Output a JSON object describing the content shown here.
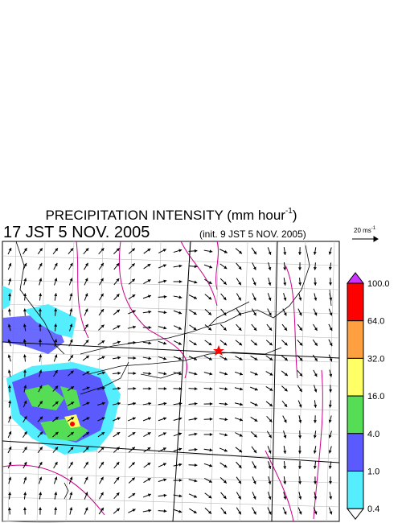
{
  "header": {
    "title": {
      "text": "PRECIPITATION INTENSITY (mm hour",
      "superscript": "-1",
      "close": ")"
    },
    "valid_time": "17 JST 5 NOV. 2005",
    "init_time": "(init. 9 JST 5 NOV. 2005)",
    "reference_vector": {
      "text": "20 ms",
      "superscript": "-1"
    }
  },
  "legend": {
    "labels": [
      "100.0",
      "64.0",
      "32.0",
      "16.0",
      "4.0",
      "1.0",
      "0.4"
    ],
    "colors": [
      "#ff0000",
      "#ffa040",
      "#ffff66",
      "#55dd55",
      "#5a5aff",
      "#55eeff"
    ],
    "over_color": "#cc33ff",
    "under_color": "#ffffff"
  }
}
